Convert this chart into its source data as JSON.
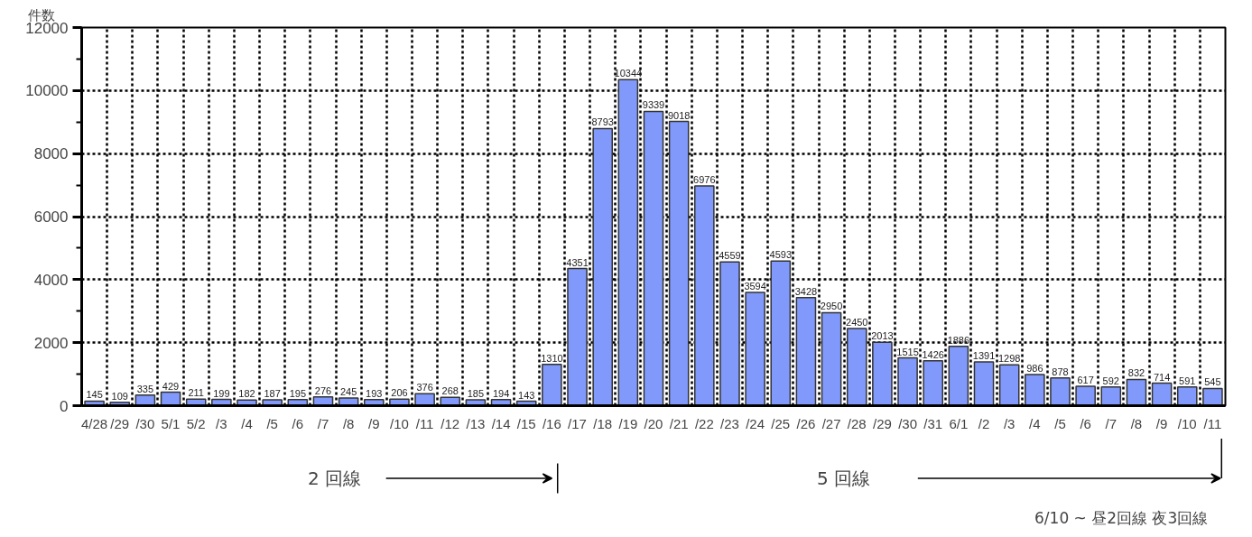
{
  "chart_data": {
    "type": "bar",
    "ylabel": "件数",
    "categories": [
      "4/28",
      "/29",
      "/30",
      "5/1",
      "5/2",
      "/3",
      "/4",
      "/5",
      "/6",
      "/7",
      "/8",
      "/9",
      "/10",
      "/11",
      "/12",
      "/13",
      "/14",
      "/15",
      "/16",
      "/17",
      "/18",
      "/19",
      "/20",
      "/21",
      "/22",
      "/23",
      "/24",
      "/25",
      "/26",
      "/27",
      "/28",
      "/29",
      "/30",
      "/31",
      "6/1",
      "/2",
      "/3",
      "/4",
      "/5",
      "/6",
      "/7",
      "/8",
      "/9",
      "/10",
      "/11"
    ],
    "values": [
      145,
      109,
      335,
      429,
      211,
      199,
      182,
      187,
      195,
      276,
      245,
      193,
      206,
      376,
      268,
      185,
      194,
      143,
      1310,
      4351,
      8793,
      10344,
      9339,
      9018,
      6976,
      4559,
      3594,
      4593,
      3428,
      2950,
      2450,
      2013,
      1515,
      1426,
      1886,
      1391,
      1298,
      986,
      878,
      617,
      592,
      832,
      714,
      591,
      545
    ],
    "color": "#8199fa",
    "data_labels": true,
    "ylim": [
      0,
      12000
    ],
    "yticks": [
      0,
      2000,
      4000,
      6000,
      8000,
      10000,
      12000
    ],
    "grid": true,
    "annotations": [
      "2 回線",
      "5 回線",
      "6/10 ~ 昼2回線  夜3回線"
    ]
  }
}
